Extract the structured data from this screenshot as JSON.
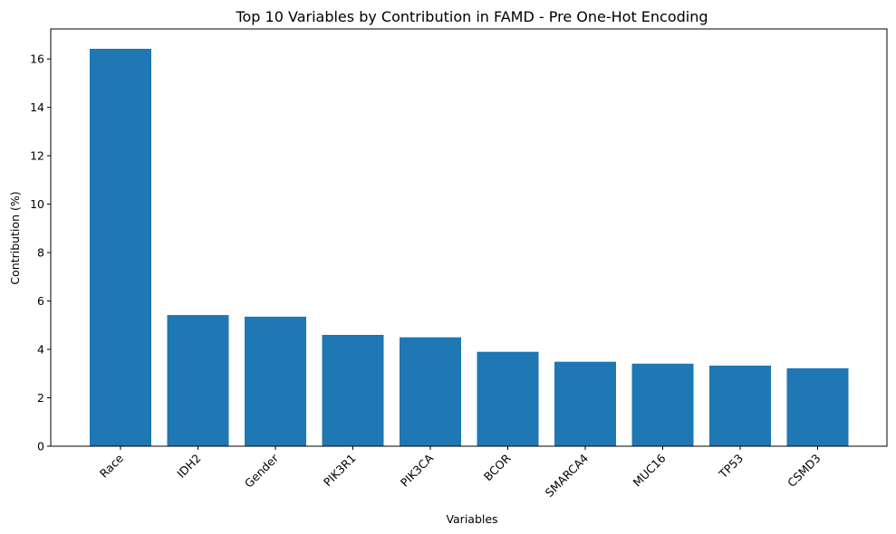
{
  "chart_data": {
    "type": "bar",
    "title": "Top 10 Variables by Contribution in FAMD - Pre One-Hot Encoding",
    "xlabel": "Variables",
    "ylabel": "Contribution (%)",
    "categories": [
      "Race",
      "IDH2",
      "Gender",
      "PIK3R1",
      "PIK3CA",
      "BCOR",
      "SMARCA4",
      "MUC16",
      "TP53",
      "CSMD3"
    ],
    "values": [
      16.42,
      5.42,
      5.35,
      4.6,
      4.5,
      3.9,
      3.49,
      3.41,
      3.33,
      3.22
    ],
    "ylim": [
      0,
      17.24
    ],
    "yticks": [
      0,
      2,
      4,
      6,
      8,
      10,
      12,
      14,
      16
    ],
    "bar_color": "#1f77b4",
    "grid": false,
    "legend": "none"
  }
}
